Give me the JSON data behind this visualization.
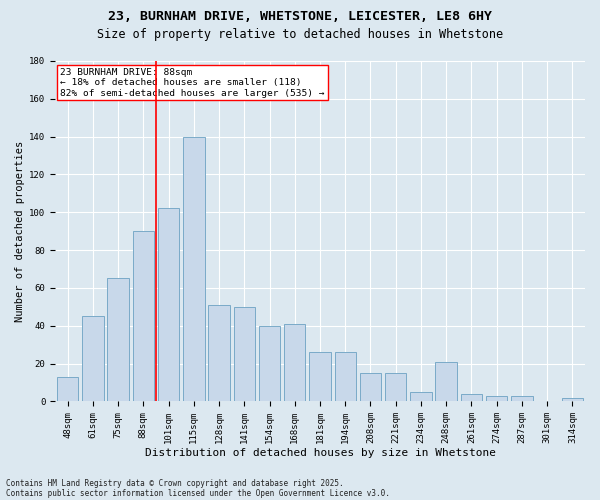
{
  "title1": "23, BURNHAM DRIVE, WHETSTONE, LEICESTER, LE8 6HY",
  "title2": "Size of property relative to detached houses in Whetstone",
  "xlabel": "Distribution of detached houses by size in Whetstone",
  "ylabel": "Number of detached properties",
  "categories": [
    "48sqm",
    "61sqm",
    "75sqm",
    "88sqm",
    "101sqm",
    "115sqm",
    "128sqm",
    "141sqm",
    "154sqm",
    "168sqm",
    "181sqm",
    "194sqm",
    "208sqm",
    "221sqm",
    "234sqm",
    "248sqm",
    "261sqm",
    "274sqm",
    "287sqm",
    "301sqm",
    "314sqm"
  ],
  "values": [
    13,
    45,
    65,
    90,
    102,
    140,
    51,
    50,
    40,
    41,
    26,
    26,
    15,
    15,
    5,
    21,
    4,
    3,
    3,
    0,
    2
  ],
  "bar_color": "#c8d8ea",
  "bar_edge_color": "#7aaac8",
  "vline_x": 3.5,
  "vline_color": "red",
  "annotation_text": "23 BURNHAM DRIVE: 88sqm\n← 18% of detached houses are smaller (118)\n82% of semi-detached houses are larger (535) →",
  "annotation_box_color": "white",
  "annotation_box_edge": "red",
  "ylim": [
    0,
    180
  ],
  "yticks": [
    0,
    20,
    40,
    60,
    80,
    100,
    120,
    140,
    160,
    180
  ],
  "bg_color": "#dce8f0",
  "grid_color": "white",
  "footer1": "Contains HM Land Registry data © Crown copyright and database right 2025.",
  "footer2": "Contains public sector information licensed under the Open Government Licence v3.0.",
  "title_fontsize": 9.5,
  "subtitle_fontsize": 8.5,
  "xlabel_fontsize": 8,
  "ylabel_fontsize": 7.5,
  "tick_fontsize": 6.5,
  "annot_fontsize": 6.8,
  "footer_fontsize": 5.5
}
